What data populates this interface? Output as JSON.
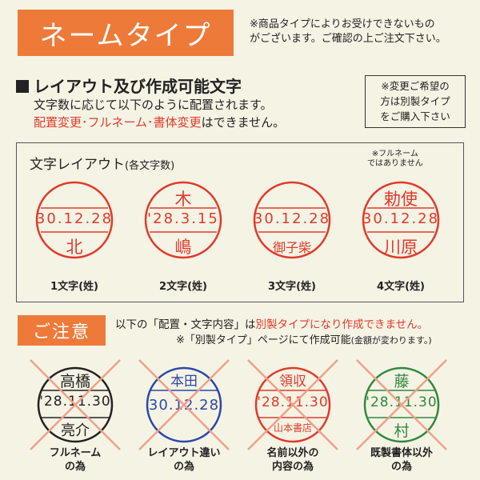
{
  "header": {
    "title": "ネームタイプ",
    "note_line1": "※商品タイプによりお受けできないもの",
    "note_line2": "がございます。ご確認の上ご注文下さい。"
  },
  "layout_section": {
    "heading": "レイアウト及び作成可能文字",
    "line1": "文字数に応じて以下のように配置されます。",
    "line2_red": "配置変更･フルネーム･書体変更",
    "line2_rest": "はできません。"
  },
  "custom_note": {
    "line1": "※変更ご希望の",
    "line2": "方は別製タイプ",
    "line3": "をご購入下さい"
  },
  "layout_box": {
    "title": "文字レイアウト",
    "title_small": "(各文字数)",
    "fullname_note1": "※フルネーム",
    "fullname_note2": "ではありません"
  },
  "stamps": [
    {
      "top": "",
      "date": "30.12.28",
      "bottom": "北",
      "caption": "1文字(姓)"
    },
    {
      "top": "木",
      "date": "'28.3.15",
      "bottom": "嶋",
      "caption": "2文字(姓)"
    },
    {
      "top": "",
      "date": "30.12.28",
      "bottom": "御子柴",
      "caption": "3文字(姓)"
    },
    {
      "top": "勅使",
      "date": "30.12.28",
      "bottom": "川原",
      "caption": "4文字(姓)"
    }
  ],
  "caution": {
    "label": "ご注意",
    "text1_pre": "以下の「配置・文字内容」は",
    "text1_red": "別製タイプになり作成できません。",
    "text2": "※「別製タイプ」ページにて作成可能",
    "text2_small": "(金額が変わります。)"
  },
  "ng_stamps": [
    {
      "top": "高橋",
      "date": "'28.11.30",
      "bottom": "亮介",
      "color": "#222222",
      "caption1": "フルネーム",
      "caption2": "の為"
    },
    {
      "top": "本田",
      "date": "30.12.28",
      "bottom": "",
      "color": "#2a49a8",
      "caption1": "レイアウト違い",
      "caption2": "の為"
    },
    {
      "top": "領収",
      "date": "'28.11.30",
      "bottom": "山本書店",
      "color": "#e03a2c",
      "caption1": "名前以外の",
      "caption2": "内容の為"
    },
    {
      "top": "藤",
      "date": "'28.11.30",
      "bottom": "村",
      "color": "#2f8a3c",
      "caption1": "既製書体以外",
      "caption2": "の為"
    }
  ],
  "colors": {
    "accent": "#ee7a3a",
    "stamp_red": "#e03a2c",
    "cross": "#f0a08a"
  }
}
